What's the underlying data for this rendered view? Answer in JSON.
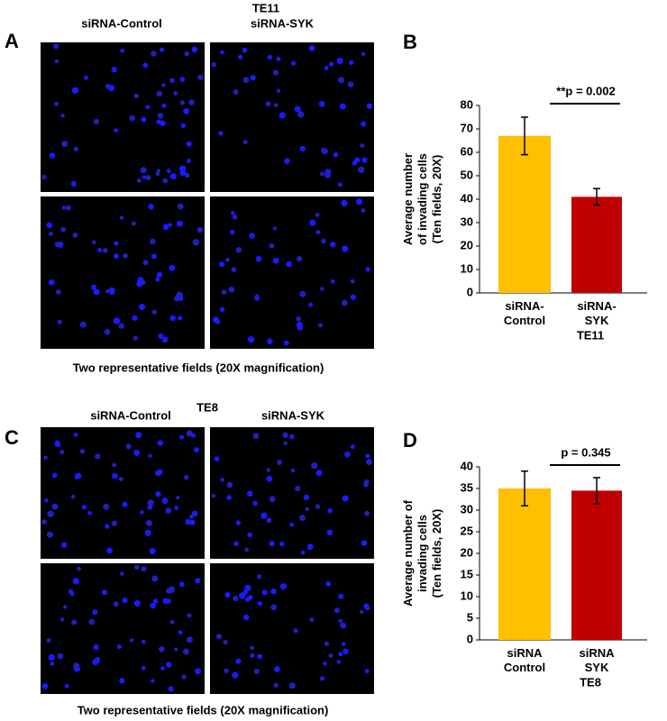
{
  "panels": [
    {
      "letter": "A",
      "title": "TE11",
      "columns": [
        "siRNA-Control",
        "siRNA-SYK"
      ],
      "caption": "Two representative fields (20X magnification)"
    },
    {
      "letter": "C",
      "title": "TE8",
      "columns": [
        "siRNA-Control",
        "siRNA-SYK"
      ],
      "caption": "Two representative fields (20X magnification)"
    }
  ],
  "chart_data": [
    {
      "type": "bar",
      "letter": "B",
      "y_label": "Average number\nof invading cells\n(Ten fields, 20X)",
      "x_label": "TE11",
      "annotation": "**p = 0.002",
      "categories": [
        "siRNA-\nControl",
        "siRNA-\nSYK"
      ],
      "values": [
        67,
        41
      ],
      "errors": [
        8,
        3.5
      ],
      "colors": [
        "#ffc000",
        "#c00000"
      ],
      "ylim": [
        0,
        80
      ],
      "yticks": [
        0,
        10,
        20,
        30,
        40,
        50,
        60,
        70,
        80
      ]
    },
    {
      "type": "bar",
      "letter": "D",
      "y_label": "Average number of\ninvading cells\n(Ten fields, 20X)",
      "x_label": "TE8",
      "annotation": "p = 0.345",
      "categories": [
        "siRNA\nControl",
        "siRNA\nSYK"
      ],
      "values": [
        35,
        34.5
      ],
      "errors": [
        4,
        3
      ],
      "colors": [
        "#ffc000",
        "#c00000"
      ],
      "ylim": [
        0,
        40
      ],
      "yticks": [
        0,
        5,
        10,
        15,
        20,
        25,
        30,
        35,
        40
      ]
    }
  ]
}
